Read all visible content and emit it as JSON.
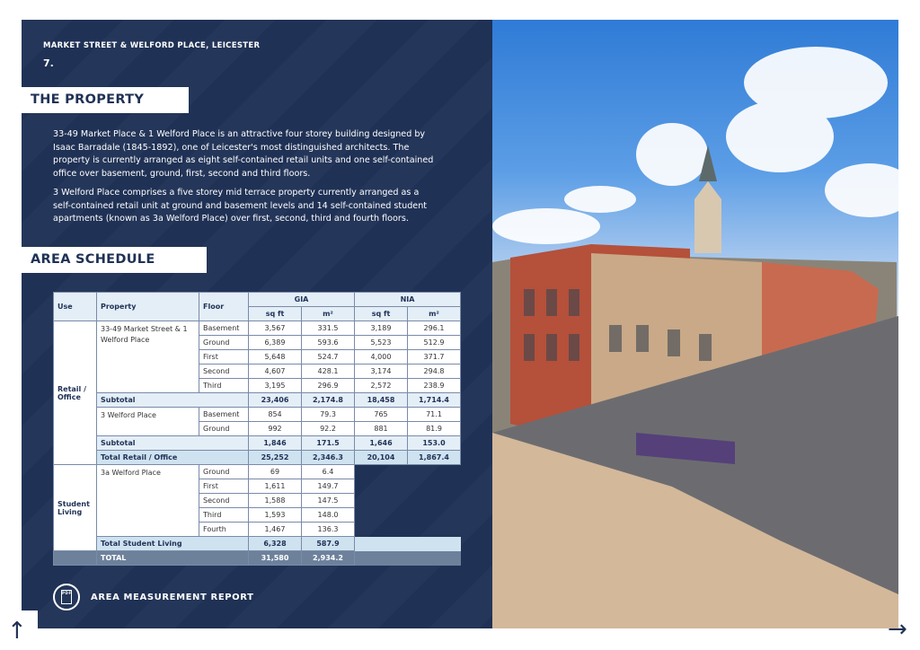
{
  "header": {
    "kicker": "MARKET STREET & WELFORD PLACE, LEICESTER",
    "page_number": "7."
  },
  "property": {
    "heading": "THE PROPERTY",
    "paragraphs": [
      "33-49 Market Place & 1 Welford Place is an attractive four storey building designed by Isaac Barradale (1845-1892), one of Leicester's most distinguished architects. The property is currently arranged as eight self-contained retail units and one self-contained office over basement, ground, first, second and third floors.",
      "3 Welford Place comprises a five storey mid terrace property currently arranged as a self-contained retail unit at ground and basement levels and 14 self-contained student apartments (known as 3a Welford Place) over first, second, third and fourth floors."
    ]
  },
  "schedule": {
    "heading": "AREA SCHEDULE",
    "columns": {
      "use": "Use",
      "property": "Property",
      "floor": "Floor",
      "gia": "GIA",
      "nia": "NIA",
      "sqft": "sq ft",
      "m2": "m²"
    },
    "retail": {
      "use": "Retail / Office",
      "group1": {
        "property": "33-49 Market Street & 1 Welford Place",
        "rows": [
          [
            "Basement",
            "3,567",
            "331.5",
            "3,189",
            "296.1"
          ],
          [
            "Ground",
            "6,389",
            "593.6",
            "5,523",
            "512.9"
          ],
          [
            "First",
            "5,648",
            "524.7",
            "4,000",
            "371.7"
          ],
          [
            "Second",
            "4,607",
            "428.1",
            "3,174",
            "294.8"
          ],
          [
            "Third",
            "3,195",
            "296.9",
            "2,572",
            "238.9"
          ]
        ],
        "subtotal": [
          "Subtotal",
          "23,406",
          "2,174.8",
          "18,458",
          "1,714.4"
        ]
      },
      "group2": {
        "property": "3 Welford Place",
        "rows": [
          [
            "Basement",
            "854",
            "79.3",
            "765",
            "71.1"
          ],
          [
            "Ground",
            "992",
            "92.2",
            "881",
            "81.9"
          ]
        ],
        "subtotal": [
          "Subtotal",
          "1,846",
          "171.5",
          "1,646",
          "153.0"
        ]
      },
      "total": [
        "Total Retail / Office",
        "25,252",
        "2,346.3",
        "20,104",
        "1,867.4"
      ]
    },
    "student": {
      "use": "Student Living",
      "property": "3a Welford Place",
      "rows": [
        [
          "Ground",
          "69",
          "6.4"
        ],
        [
          "First",
          "1,611",
          "149.7"
        ],
        [
          "Second",
          "1,588",
          "147.5"
        ],
        [
          "Third",
          "1,593",
          "148.0"
        ],
        [
          "Fourth",
          "1,467",
          "136.3"
        ]
      ],
      "total": [
        "Total Student Living",
        "6,328",
        "587.9"
      ]
    },
    "grand_total": [
      "TOTAL",
      "31,580",
      "2,934.2"
    ]
  },
  "report": {
    "label": "AREA MEASUREMENT REPORT",
    "icon": "pdf-icon",
    "icon_text": "PDF"
  },
  "nav": {
    "prev": "↑",
    "next": "→"
  },
  "colors": {
    "navy": "#1f3155",
    "header_fill": "#e4eef7",
    "total_fill": "#cfe2f0",
    "grand_fill": "#6d819b"
  }
}
